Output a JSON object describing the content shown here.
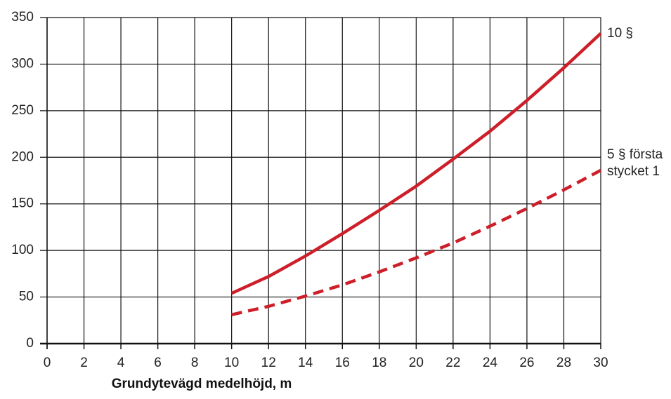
{
  "chart_data": {
    "type": "line",
    "x_label": "Grundytevägd medelhöjd, m",
    "x": [
      10,
      12,
      14,
      16,
      18,
      20,
      22,
      24,
      26,
      28,
      30
    ],
    "series": [
      {
        "name": "10 §",
        "color": "#cc1f2a",
        "dash": false,
        "values": [
          54,
          72,
          94,
          118,
          143,
          169,
          198,
          228,
          261,
          296,
          333
        ]
      },
      {
        "name": "5 § första stycket 1",
        "color": "#cc1f2a",
        "dash": true,
        "values": [
          31,
          40,
          51,
          63,
          77,
          92,
          108,
          126,
          145,
          165,
          186
        ]
      }
    ],
    "xlim": [
      0,
      30
    ],
    "xticks": [
      0,
      2,
      4,
      6,
      8,
      10,
      12,
      14,
      16,
      18,
      20,
      22,
      24,
      26,
      28,
      30
    ],
    "ylim": [
      0,
      350
    ],
    "yticks": [
      0,
      50,
      100,
      150,
      200,
      250,
      300,
      350
    ],
    "grid": true
  }
}
